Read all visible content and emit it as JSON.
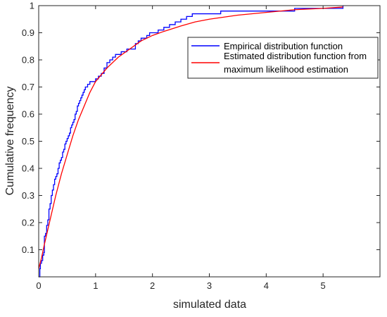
{
  "chart_data": {
    "type": "line",
    "title": "",
    "xlabel": "simulated data",
    "ylabel": "Cumulative frequency",
    "xlim": [
      0,
      6
    ],
    "ylim": [
      0,
      1
    ],
    "x_ticks": [
      0,
      1,
      2,
      3,
      4,
      5
    ],
    "x_tick_labels": [
      "0",
      "1",
      "2",
      "3",
      "4",
      "5"
    ],
    "y_ticks": [
      0.1,
      0.2,
      0.3,
      0.4,
      0.5,
      0.6,
      0.7,
      0.8,
      0.9,
      1
    ],
    "y_tick_labels": [
      "0.1",
      "0.2",
      "0.3",
      "0.4",
      "0.5",
      "0.6",
      "0.7",
      "0.8",
      "0.9",
      "1"
    ],
    "grid": false,
    "legend_position": "top-right",
    "series": [
      {
        "name": "Empirical distribution function",
        "color": "#0000ff",
        "style": "stairs",
        "x": [
          0.0,
          0.02,
          0.03,
          0.05,
          0.07,
          0.09,
          0.1,
          0.12,
          0.14,
          0.16,
          0.18,
          0.2,
          0.22,
          0.24,
          0.26,
          0.28,
          0.3,
          0.32,
          0.34,
          0.36,
          0.38,
          0.4,
          0.42,
          0.44,
          0.46,
          0.48,
          0.5,
          0.52,
          0.54,
          0.56,
          0.58,
          0.6,
          0.62,
          0.64,
          0.66,
          0.68,
          0.7,
          0.72,
          0.74,
          0.76,
          0.78,
          0.8,
          0.82,
          0.84,
          0.86,
          0.88,
          0.9,
          0.93,
          0.96,
          1.0,
          1.05,
          1.1,
          1.15,
          1.2,
          1.25,
          1.3,
          1.35,
          1.4,
          1.45,
          1.5,
          1.55,
          1.6,
          1.7,
          1.75,
          1.8,
          1.85,
          1.9,
          1.95,
          2.0,
          2.1,
          2.2,
          2.3,
          2.4,
          2.5,
          2.6,
          2.7,
          2.8,
          3.0,
          3.2,
          3.5,
          4.0,
          4.5,
          5.0,
          5.35
        ],
        "y": [
          0.0,
          0.03,
          0.05,
          0.06,
          0.08,
          0.09,
          0.15,
          0.16,
          0.19,
          0.21,
          0.25,
          0.27,
          0.3,
          0.32,
          0.34,
          0.36,
          0.37,
          0.38,
          0.4,
          0.42,
          0.43,
          0.44,
          0.46,
          0.47,
          0.49,
          0.5,
          0.51,
          0.52,
          0.53,
          0.55,
          0.56,
          0.57,
          0.58,
          0.6,
          0.61,
          0.63,
          0.64,
          0.65,
          0.66,
          0.67,
          0.68,
          0.69,
          0.7,
          0.7,
          0.71,
          0.71,
          0.72,
          0.72,
          0.72,
          0.73,
          0.74,
          0.75,
          0.77,
          0.79,
          0.8,
          0.81,
          0.82,
          0.82,
          0.83,
          0.83,
          0.84,
          0.84,
          0.86,
          0.87,
          0.88,
          0.88,
          0.89,
          0.9,
          0.9,
          0.91,
          0.92,
          0.93,
          0.94,
          0.95,
          0.96,
          0.97,
          0.97,
          0.97,
          0.98,
          0.98,
          0.98,
          0.99,
          0.99,
          1.0
        ]
      },
      {
        "name": "Estimated distribution function from maximum likelihood estimation",
        "legend_lines": [
          "Estimated distribution function from",
          "maximum likelihood estimation"
        ],
        "color": "#ff0000",
        "style": "line",
        "x": [
          0.0,
          0.05,
          0.1,
          0.2,
          0.3,
          0.4,
          0.5,
          0.6,
          0.7,
          0.8,
          0.9,
          1.0,
          1.2,
          1.4,
          1.6,
          1.8,
          2.0,
          2.2,
          2.5,
          2.75,
          3.0,
          3.5,
          4.0,
          4.5,
          5.0,
          5.35
        ],
        "y": [
          0.03,
          0.07,
          0.12,
          0.21,
          0.3,
          0.38,
          0.45,
          0.52,
          0.58,
          0.63,
          0.68,
          0.72,
          0.77,
          0.81,
          0.84,
          0.87,
          0.89,
          0.905,
          0.925,
          0.94,
          0.95,
          0.965,
          0.975,
          0.985,
          0.99,
          0.995
        ]
      }
    ]
  }
}
